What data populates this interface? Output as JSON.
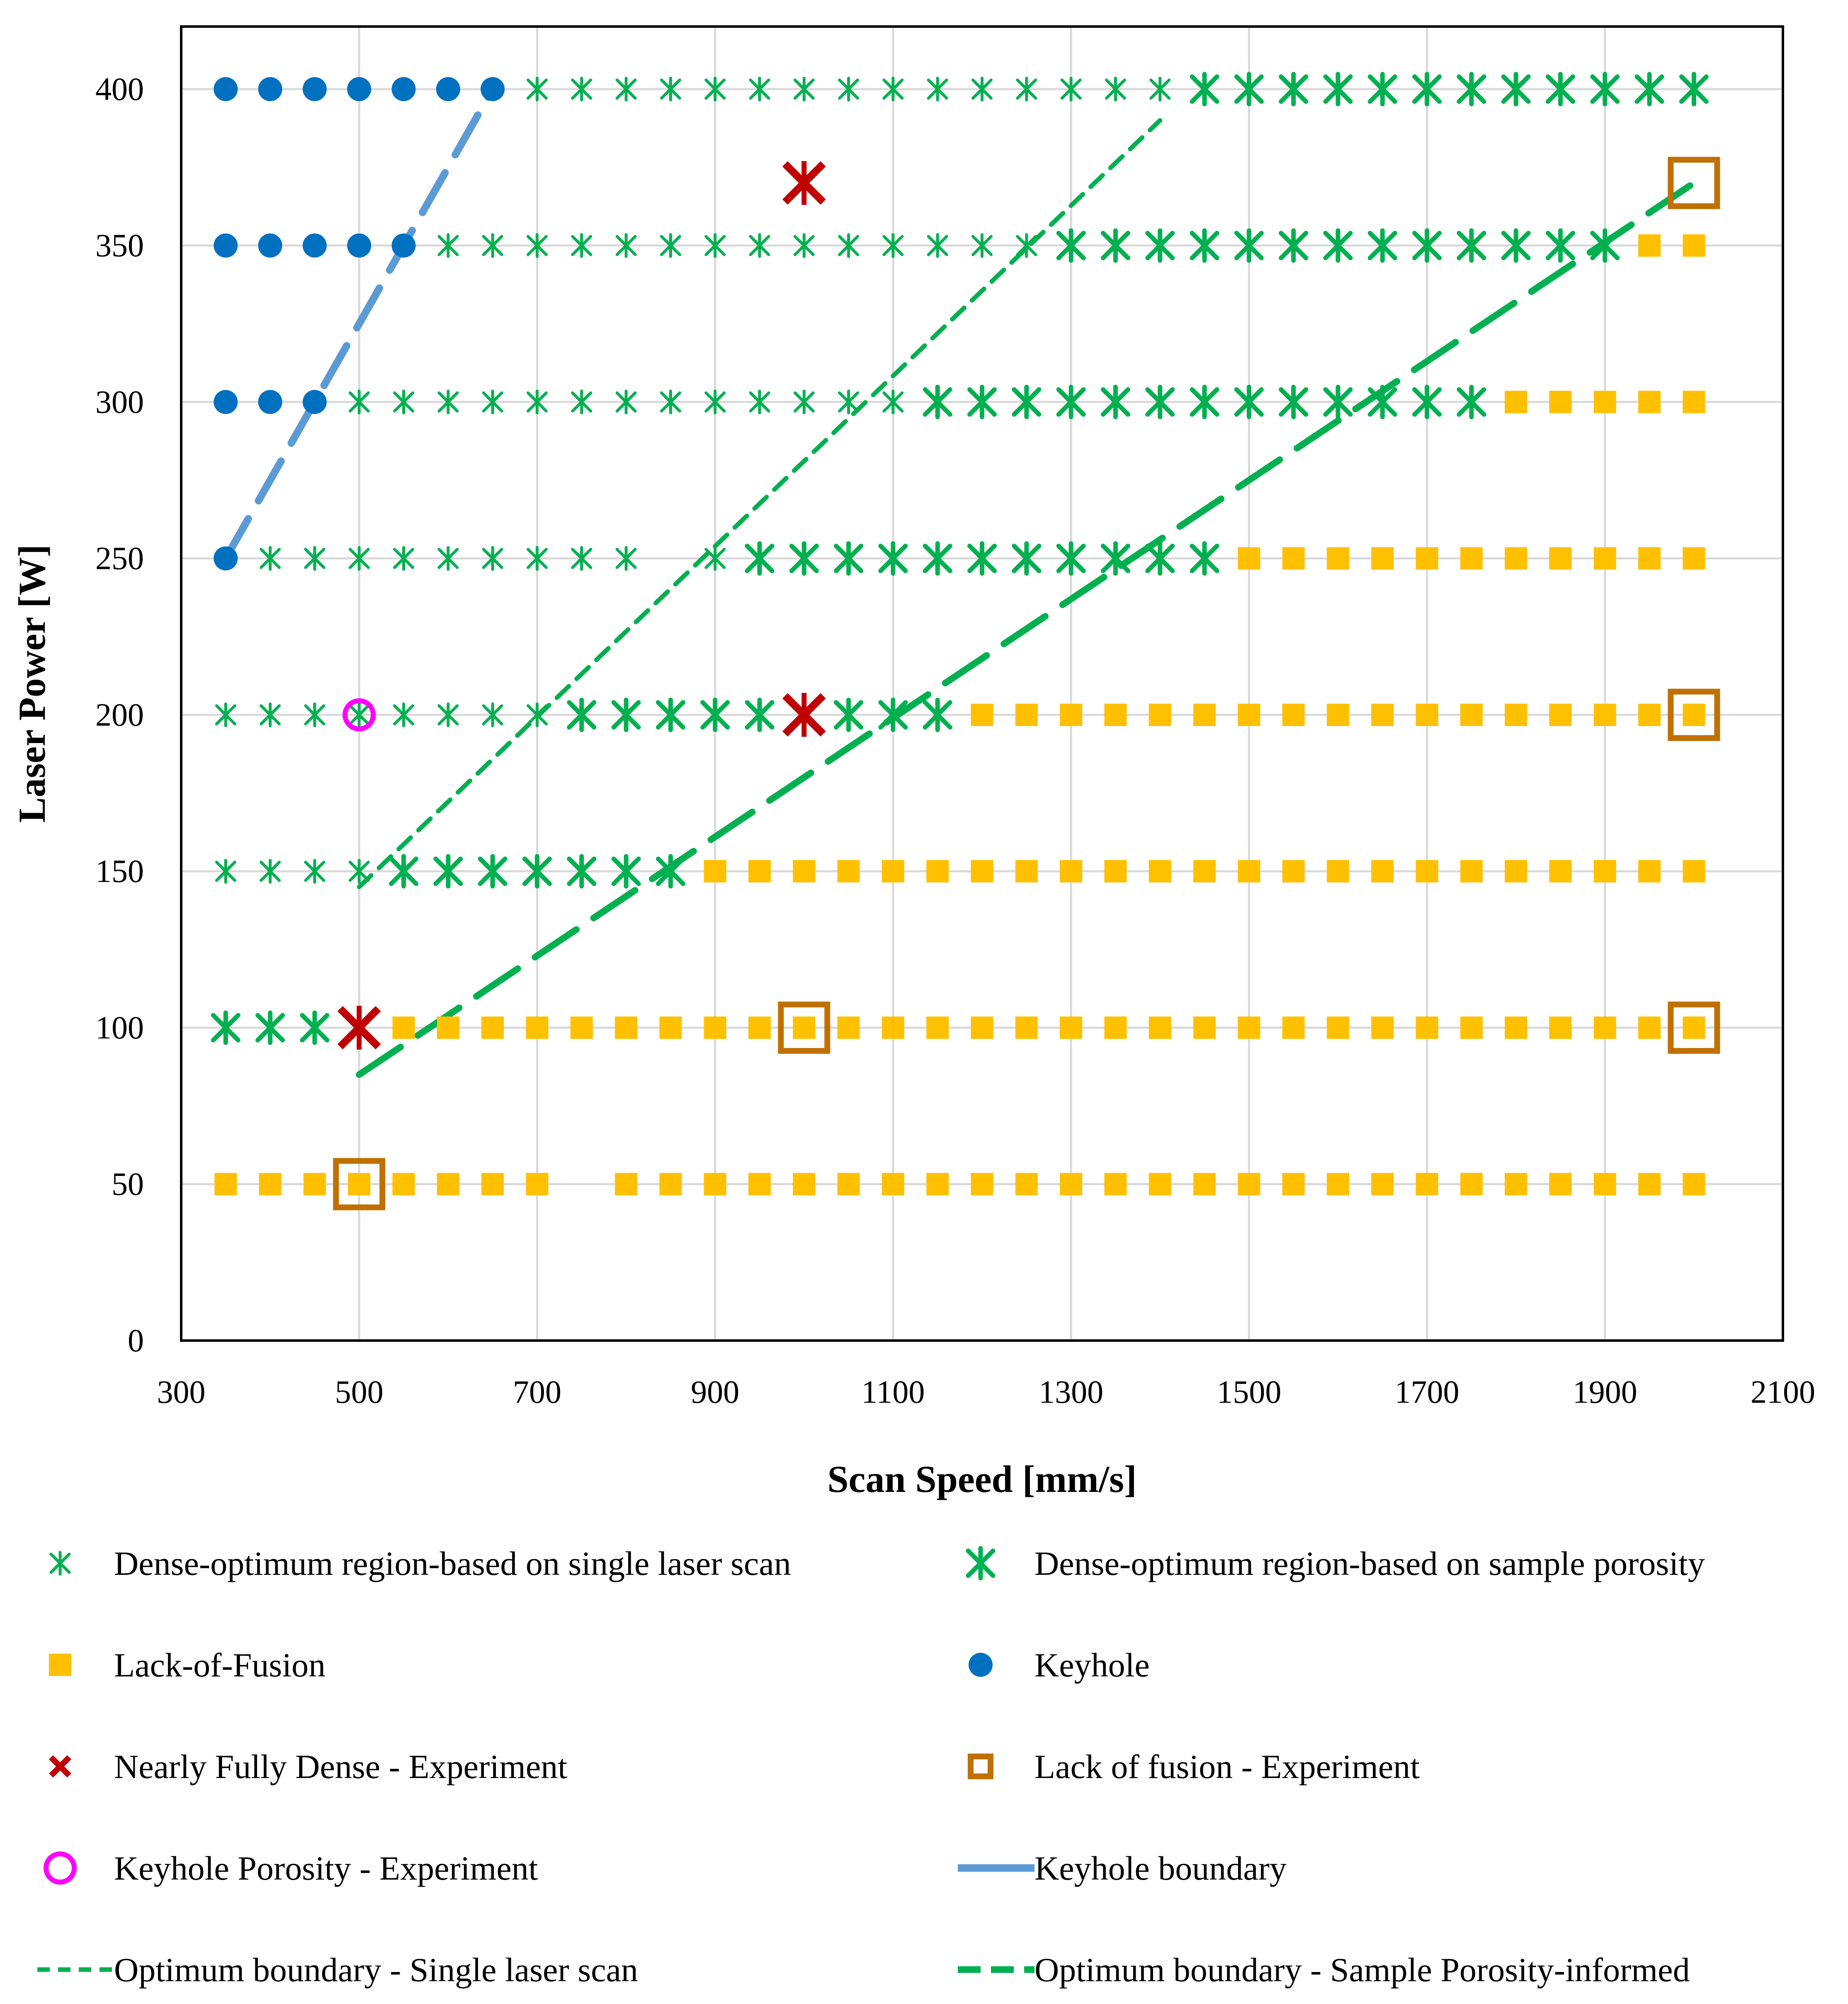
{
  "chart_data": {
    "type": "scatter",
    "title": "",
    "xlabel": "Scan Speed [mm/s]",
    "ylabel": "Laser Power [W]",
    "xlim": [
      300,
      2100
    ],
    "ylim": [
      0,
      420
    ],
    "xticks": [
      300,
      500,
      700,
      900,
      1100,
      1300,
      1500,
      1700,
      1900,
      2100
    ],
    "yticks": [
      0,
      50,
      100,
      150,
      200,
      250,
      300,
      350,
      400
    ],
    "grid": "vertical and horizontal",
    "legend_position": "bottom",
    "colors": {
      "single_scan": "#00B050",
      "sample_porosity": "#00B050",
      "lack_of_fusion": "#FFC000",
      "keyhole": "#0070C0",
      "dense_experiment": "#C00000",
      "lof_experiment": "#C07000",
      "keyhole_experiment": "#FF00FF",
      "keyhole_boundary": "#5B9BD5",
      "optimum_boundary": "#00B050"
    },
    "series": [
      {
        "name": "Dense-optimum region-based on single laser scan",
        "marker": "star-small",
        "points": [
          [
            700,
            400
          ],
          [
            750,
            400
          ],
          [
            800,
            400
          ],
          [
            850,
            400
          ],
          [
            900,
            400
          ],
          [
            950,
            400
          ],
          [
            1000,
            400
          ],
          [
            1050,
            400
          ],
          [
            1100,
            400
          ],
          [
            1150,
            400
          ],
          [
            1200,
            400
          ],
          [
            1250,
            400
          ],
          [
            1300,
            400
          ],
          [
            1350,
            400
          ],
          [
            1400,
            400
          ],
          [
            600,
            350
          ],
          [
            650,
            350
          ],
          [
            700,
            350
          ],
          [
            750,
            350
          ],
          [
            800,
            350
          ],
          [
            850,
            350
          ],
          [
            900,
            350
          ],
          [
            950,
            350
          ],
          [
            1000,
            350
          ],
          [
            1050,
            350
          ],
          [
            1100,
            350
          ],
          [
            1150,
            350
          ],
          [
            1200,
            350
          ],
          [
            1250,
            350
          ],
          [
            500,
            300
          ],
          [
            550,
            300
          ],
          [
            600,
            300
          ],
          [
            650,
            300
          ],
          [
            700,
            300
          ],
          [
            750,
            300
          ],
          [
            800,
            300
          ],
          [
            850,
            300
          ],
          [
            900,
            300
          ],
          [
            950,
            300
          ],
          [
            1000,
            300
          ],
          [
            1050,
            300
          ],
          [
            1100,
            300
          ],
          [
            400,
            250
          ],
          [
            450,
            250
          ],
          [
            500,
            250
          ],
          [
            550,
            250
          ],
          [
            600,
            250
          ],
          [
            650,
            250
          ],
          [
            700,
            250
          ],
          [
            750,
            250
          ],
          [
            800,
            250
          ],
          [
            900,
            250
          ],
          [
            350,
            200
          ],
          [
            400,
            200
          ],
          [
            450,
            200
          ],
          [
            500,
            200
          ],
          [
            550,
            200
          ],
          [
            600,
            200
          ],
          [
            650,
            200
          ],
          [
            700,
            200
          ],
          [
            350,
            150
          ],
          [
            400,
            150
          ],
          [
            450,
            150
          ],
          [
            500,
            150
          ]
        ]
      },
      {
        "name": "Dense-optimum region-based on sample porosity",
        "marker": "star-large",
        "points": [
          [
            1450,
            400
          ],
          [
            1500,
            400
          ],
          [
            1550,
            400
          ],
          [
            1600,
            400
          ],
          [
            1650,
            400
          ],
          [
            1700,
            400
          ],
          [
            1750,
            400
          ],
          [
            1800,
            400
          ],
          [
            1850,
            400
          ],
          [
            1900,
            400
          ],
          [
            1950,
            400
          ],
          [
            2000,
            400
          ],
          [
            1300,
            350
          ],
          [
            1350,
            350
          ],
          [
            1400,
            350
          ],
          [
            1450,
            350
          ],
          [
            1500,
            350
          ],
          [
            1550,
            350
          ],
          [
            1600,
            350
          ],
          [
            1650,
            350
          ],
          [
            1700,
            350
          ],
          [
            1750,
            350
          ],
          [
            1800,
            350
          ],
          [
            1850,
            350
          ],
          [
            1900,
            350
          ],
          [
            1150,
            300
          ],
          [
            1200,
            300
          ],
          [
            1250,
            300
          ],
          [
            1300,
            300
          ],
          [
            1350,
            300
          ],
          [
            1400,
            300
          ],
          [
            1450,
            300
          ],
          [
            1500,
            300
          ],
          [
            1550,
            300
          ],
          [
            1600,
            300
          ],
          [
            1650,
            300
          ],
          [
            1700,
            300
          ],
          [
            1750,
            300
          ],
          [
            950,
            250
          ],
          [
            1000,
            250
          ],
          [
            1050,
            250
          ],
          [
            1100,
            250
          ],
          [
            1150,
            250
          ],
          [
            1200,
            250
          ],
          [
            1250,
            250
          ],
          [
            1300,
            250
          ],
          [
            1350,
            250
          ],
          [
            1400,
            250
          ],
          [
            1450,
            250
          ],
          [
            750,
            200
          ],
          [
            800,
            200
          ],
          [
            850,
            200
          ],
          [
            900,
            200
          ],
          [
            950,
            200
          ],
          [
            1050,
            200
          ],
          [
            1100,
            200
          ],
          [
            1150,
            200
          ],
          [
            550,
            150
          ],
          [
            600,
            150
          ],
          [
            650,
            150
          ],
          [
            700,
            150
          ],
          [
            750,
            150
          ],
          [
            800,
            150
          ],
          [
            850,
            150
          ],
          [
            350,
            100
          ],
          [
            400,
            100
          ],
          [
            450,
            100
          ]
        ]
      },
      {
        "name": "Lack-of-Fusion",
        "marker": "square",
        "points": [
          [
            1950,
            350
          ],
          [
            2000,
            350
          ],
          [
            1800,
            300
          ],
          [
            1850,
            300
          ],
          [
            1900,
            300
          ],
          [
            1950,
            300
          ],
          [
            2000,
            300
          ],
          [
            1500,
            250
          ],
          [
            1550,
            250
          ],
          [
            1600,
            250
          ],
          [
            1650,
            250
          ],
          [
            1700,
            250
          ],
          [
            1750,
            250
          ],
          [
            1800,
            250
          ],
          [
            1850,
            250
          ],
          [
            1900,
            250
          ],
          [
            1950,
            250
          ],
          [
            2000,
            250
          ],
          [
            1200,
            200
          ],
          [
            1250,
            200
          ],
          [
            1300,
            200
          ],
          [
            1350,
            200
          ],
          [
            1400,
            200
          ],
          [
            1450,
            200
          ],
          [
            1500,
            200
          ],
          [
            1550,
            200
          ],
          [
            1600,
            200
          ],
          [
            1650,
            200
          ],
          [
            1700,
            200
          ],
          [
            1750,
            200
          ],
          [
            1800,
            200
          ],
          [
            1850,
            200
          ],
          [
            1900,
            200
          ],
          [
            1950,
            200
          ],
          [
            2000,
            200
          ],
          [
            900,
            150
          ],
          [
            950,
            150
          ],
          [
            1000,
            150
          ],
          [
            1050,
            150
          ],
          [
            1100,
            150
          ],
          [
            1150,
            150
          ],
          [
            1200,
            150
          ],
          [
            1250,
            150
          ],
          [
            1300,
            150
          ],
          [
            1350,
            150
          ],
          [
            1400,
            150
          ],
          [
            1450,
            150
          ],
          [
            1500,
            150
          ],
          [
            1550,
            150
          ],
          [
            1600,
            150
          ],
          [
            1650,
            150
          ],
          [
            1700,
            150
          ],
          [
            1750,
            150
          ],
          [
            1800,
            150
          ],
          [
            1850,
            150
          ],
          [
            1900,
            150
          ],
          [
            1950,
            150
          ],
          [
            2000,
            150
          ],
          [
            550,
            100
          ],
          [
            600,
            100
          ],
          [
            650,
            100
          ],
          [
            700,
            100
          ],
          [
            750,
            100
          ],
          [
            800,
            100
          ],
          [
            850,
            100
          ],
          [
            900,
            100
          ],
          [
            950,
            100
          ],
          [
            1000,
            100
          ],
          [
            1050,
            100
          ],
          [
            1100,
            100
          ],
          [
            1150,
            100
          ],
          [
            1200,
            100
          ],
          [
            1250,
            100
          ],
          [
            1300,
            100
          ],
          [
            1350,
            100
          ],
          [
            1400,
            100
          ],
          [
            1450,
            100
          ],
          [
            1500,
            100
          ],
          [
            1550,
            100
          ],
          [
            1600,
            100
          ],
          [
            1650,
            100
          ],
          [
            1700,
            100
          ],
          [
            1750,
            100
          ],
          [
            1800,
            100
          ],
          [
            1850,
            100
          ],
          [
            1900,
            100
          ],
          [
            1950,
            100
          ],
          [
            2000,
            100
          ],
          [
            350,
            50
          ],
          [
            400,
            50
          ],
          [
            450,
            50
          ],
          [
            500,
            50
          ],
          [
            550,
            50
          ],
          [
            600,
            50
          ],
          [
            650,
            50
          ],
          [
            700,
            50
          ],
          [
            800,
            50
          ],
          [
            850,
            50
          ],
          [
            900,
            50
          ],
          [
            950,
            50
          ],
          [
            1000,
            50
          ],
          [
            1050,
            50
          ],
          [
            1100,
            50
          ],
          [
            1150,
            50
          ],
          [
            1200,
            50
          ],
          [
            1250,
            50
          ],
          [
            1300,
            50
          ],
          [
            1350,
            50
          ],
          [
            1400,
            50
          ],
          [
            1450,
            50
          ],
          [
            1500,
            50
          ],
          [
            1550,
            50
          ],
          [
            1600,
            50
          ],
          [
            1650,
            50
          ],
          [
            1700,
            50
          ],
          [
            1750,
            50
          ],
          [
            1800,
            50
          ],
          [
            1850,
            50
          ],
          [
            1900,
            50
          ],
          [
            1950,
            50
          ],
          [
            2000,
            50
          ]
        ]
      },
      {
        "name": "Keyhole",
        "marker": "circle",
        "points": [
          [
            350,
            400
          ],
          [
            400,
            400
          ],
          [
            450,
            400
          ],
          [
            500,
            400
          ],
          [
            550,
            400
          ],
          [
            600,
            400
          ],
          [
            650,
            400
          ],
          [
            350,
            350
          ],
          [
            400,
            350
          ],
          [
            450,
            350
          ],
          [
            500,
            350
          ],
          [
            550,
            350
          ],
          [
            350,
            300
          ],
          [
            400,
            300
          ],
          [
            450,
            300
          ],
          [
            350,
            250
          ]
        ]
      },
      {
        "name": "Nearly Fully Dense - Experiment",
        "marker": "x-large",
        "points": [
          [
            1000,
            370
          ],
          [
            1000,
            200
          ],
          [
            500,
            100
          ]
        ]
      },
      {
        "name": "Lack of fusion - Experiment",
        "marker": "open-square",
        "points": [
          [
            2000,
            370
          ],
          [
            2000,
            200
          ],
          [
            2000,
            100
          ],
          [
            1000,
            100
          ],
          [
            500,
            50
          ]
        ]
      },
      {
        "name": "Keyhole Porosity - Experiment",
        "marker": "open-circle",
        "points": [
          [
            500,
            200
          ]
        ]
      }
    ],
    "lines": [
      {
        "name": "Keyhole boundary",
        "style": "long-dash",
        "points": [
          [
            350,
            250
          ],
          [
            650,
            400
          ]
        ]
      },
      {
        "name": "Optimum boundary - Single laser scan",
        "style": "short-dash",
        "points": [
          [
            500,
            145
          ],
          [
            1400,
            390
          ]
        ]
      },
      {
        "name": "Optimum boundary - Sample Porosity-informed",
        "style": "long-dash",
        "points": [
          [
            500,
            85
          ],
          [
            2000,
            370
          ]
        ]
      }
    ],
    "legend": [
      "Dense-optimum region-based on single laser scan",
      "Dense-optimum region-based on sample porosity",
      "Lack-of-Fusion",
      "Keyhole",
      "Nearly Fully Dense - Experiment",
      "Lack of fusion - Experiment",
      "Keyhole Porosity - Experiment",
      "Keyhole boundary",
      "Optimum boundary - Single laser scan",
      "Optimum boundary - Sample Porosity-informed"
    ]
  }
}
